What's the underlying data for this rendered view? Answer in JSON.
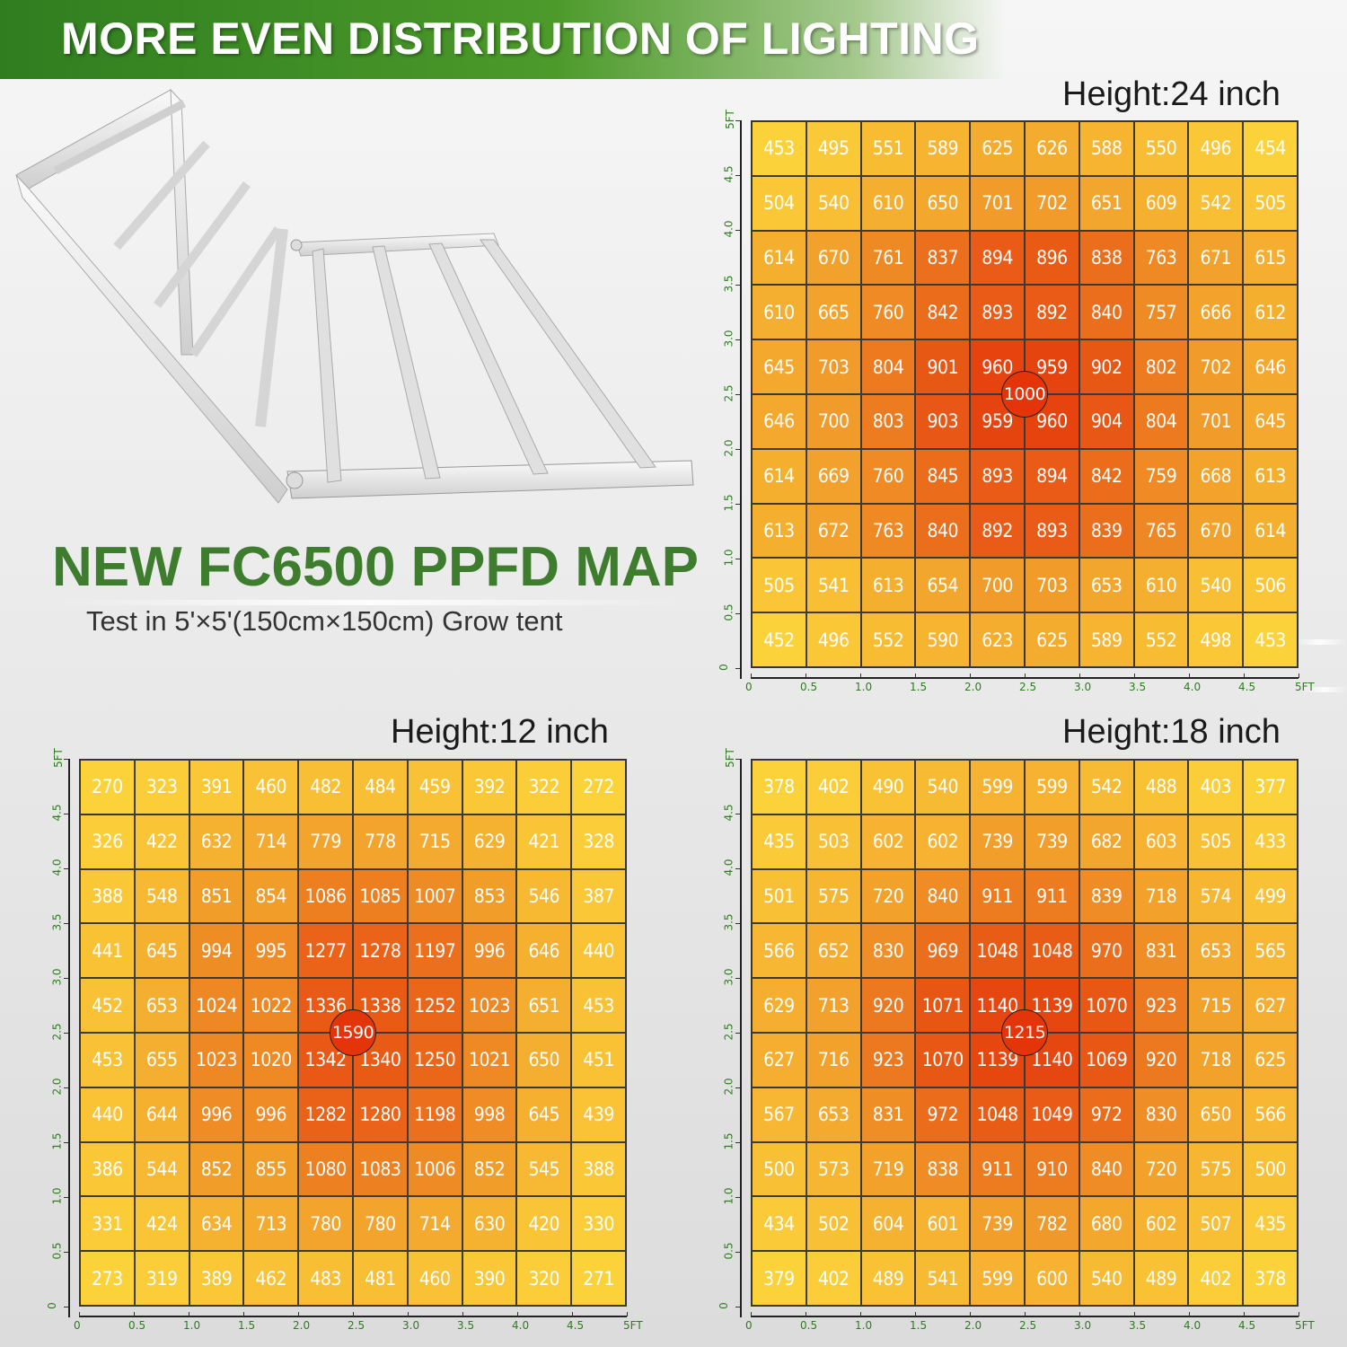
{
  "header": {
    "title": "MORE EVEN DISTRIBUTION OF LIGHTING"
  },
  "product": {
    "title": "NEW FC6500 PPFD MAP",
    "subtitle": "Test in 5'×5'(150cm×150cm) Grow tent"
  },
  "colors": {
    "brand_green": "#3e7d2e",
    "low": "#fcd23a",
    "high": "#e4350a"
  },
  "axis_ticks": [
    "0",
    "0.5",
    "1.0",
    "1.5",
    "2.0",
    "2.5",
    "3.0",
    "3.5",
    "4.0",
    "4.5",
    "5FT"
  ],
  "chart_data": [
    {
      "type": "heatmap",
      "title": "Height:24 inch",
      "x": [
        0,
        0.5,
        1.0,
        1.5,
        2.0,
        2.5,
        3.0,
        3.5,
        4.0,
        4.5,
        5
      ],
      "y": [
        0,
        0.5,
        1.0,
        1.5,
        2.0,
        2.5,
        3.0,
        3.5,
        4.0,
        4.5,
        5
      ],
      "center_value": 1000,
      "rows": [
        [
          453,
          495,
          551,
          589,
          625,
          626,
          588,
          550,
          496,
          454
        ],
        [
          504,
          540,
          610,
          650,
          701,
          702,
          651,
          609,
          542,
          505
        ],
        [
          614,
          670,
          761,
          837,
          894,
          896,
          838,
          763,
          671,
          615
        ],
        [
          610,
          665,
          760,
          842,
          893,
          892,
          840,
          757,
          666,
          612
        ],
        [
          645,
          703,
          804,
          901,
          960,
          959,
          902,
          802,
          702,
          646
        ],
        [
          646,
          700,
          803,
          903,
          959,
          960,
          904,
          804,
          701,
          645
        ],
        [
          614,
          669,
          760,
          845,
          893,
          894,
          842,
          759,
          668,
          613
        ],
        [
          613,
          672,
          763,
          840,
          892,
          893,
          839,
          765,
          670,
          614
        ],
        [
          505,
          541,
          613,
          654,
          700,
          703,
          653,
          610,
          540,
          506
        ],
        [
          452,
          496,
          552,
          590,
          623,
          625,
          589,
          552,
          498,
          453
        ]
      ]
    },
    {
      "type": "heatmap",
      "title": "Height:12 inch",
      "x": [
        0,
        0.5,
        1.0,
        1.5,
        2.0,
        2.5,
        3.0,
        3.5,
        4.0,
        4.5,
        5
      ],
      "y": [
        0,
        0.5,
        1.0,
        1.5,
        2.0,
        2.5,
        3.0,
        3.5,
        4.0,
        4.5,
        5
      ],
      "center_value": 1590,
      "rows": [
        [
          270,
          323,
          391,
          460,
          482,
          484,
          459,
          392,
          322,
          272
        ],
        [
          326,
          422,
          632,
          714,
          779,
          778,
          715,
          629,
          421,
          328
        ],
        [
          388,
          548,
          851,
          854,
          1086,
          1085,
          1007,
          853,
          546,
          387
        ],
        [
          441,
          645,
          994,
          995,
          1277,
          1278,
          1197,
          996,
          646,
          440
        ],
        [
          452,
          653,
          1024,
          1022,
          1336,
          1338,
          1252,
          1023,
          651,
          453
        ],
        [
          453,
          655,
          1023,
          1020,
          1342,
          1340,
          1250,
          1021,
          650,
          451
        ],
        [
          440,
          644,
          996,
          996,
          1282,
          1280,
          1198,
          998,
          645,
          439
        ],
        [
          386,
          544,
          852,
          855,
          1080,
          1083,
          1006,
          852,
          545,
          388
        ],
        [
          331,
          424,
          634,
          713,
          780,
          780,
          714,
          630,
          420,
          330
        ],
        [
          273,
          319,
          389,
          462,
          483,
          481,
          460,
          390,
          320,
          271
        ]
      ]
    },
    {
      "type": "heatmap",
      "title": "Height:18 inch",
      "x": [
        0,
        0.5,
        1.0,
        1.5,
        2.0,
        2.5,
        3.0,
        3.5,
        4.0,
        4.5,
        5
      ],
      "y": [
        0,
        0.5,
        1.0,
        1.5,
        2.0,
        2.5,
        3.0,
        3.5,
        4.0,
        4.5,
        5
      ],
      "center_value": 1215,
      "rows": [
        [
          378,
          402,
          490,
          540,
          599,
          599,
          542,
          488,
          403,
          377
        ],
        [
          435,
          503,
          602,
          602,
          739,
          739,
          682,
          603,
          505,
          433
        ],
        [
          501,
          575,
          720,
          840,
          911,
          911,
          839,
          718,
          574,
          499
        ],
        [
          566,
          652,
          830,
          969,
          1048,
          1048,
          970,
          831,
          653,
          565
        ],
        [
          629,
          713,
          920,
          1071,
          1140,
          1139,
          1070,
          923,
          715,
          627
        ],
        [
          627,
          716,
          923,
          1070,
          1139,
          1140,
          1069,
          920,
          718,
          625
        ],
        [
          567,
          653,
          831,
          972,
          1048,
          1049,
          972,
          830,
          650,
          566
        ],
        [
          500,
          573,
          719,
          838,
          911,
          910,
          840,
          720,
          575,
          500
        ],
        [
          434,
          502,
          604,
          601,
          739,
          782,
          680,
          602,
          507,
          435
        ],
        [
          379,
          402,
          489,
          541,
          599,
          600,
          540,
          489,
          402,
          378
        ]
      ]
    }
  ]
}
